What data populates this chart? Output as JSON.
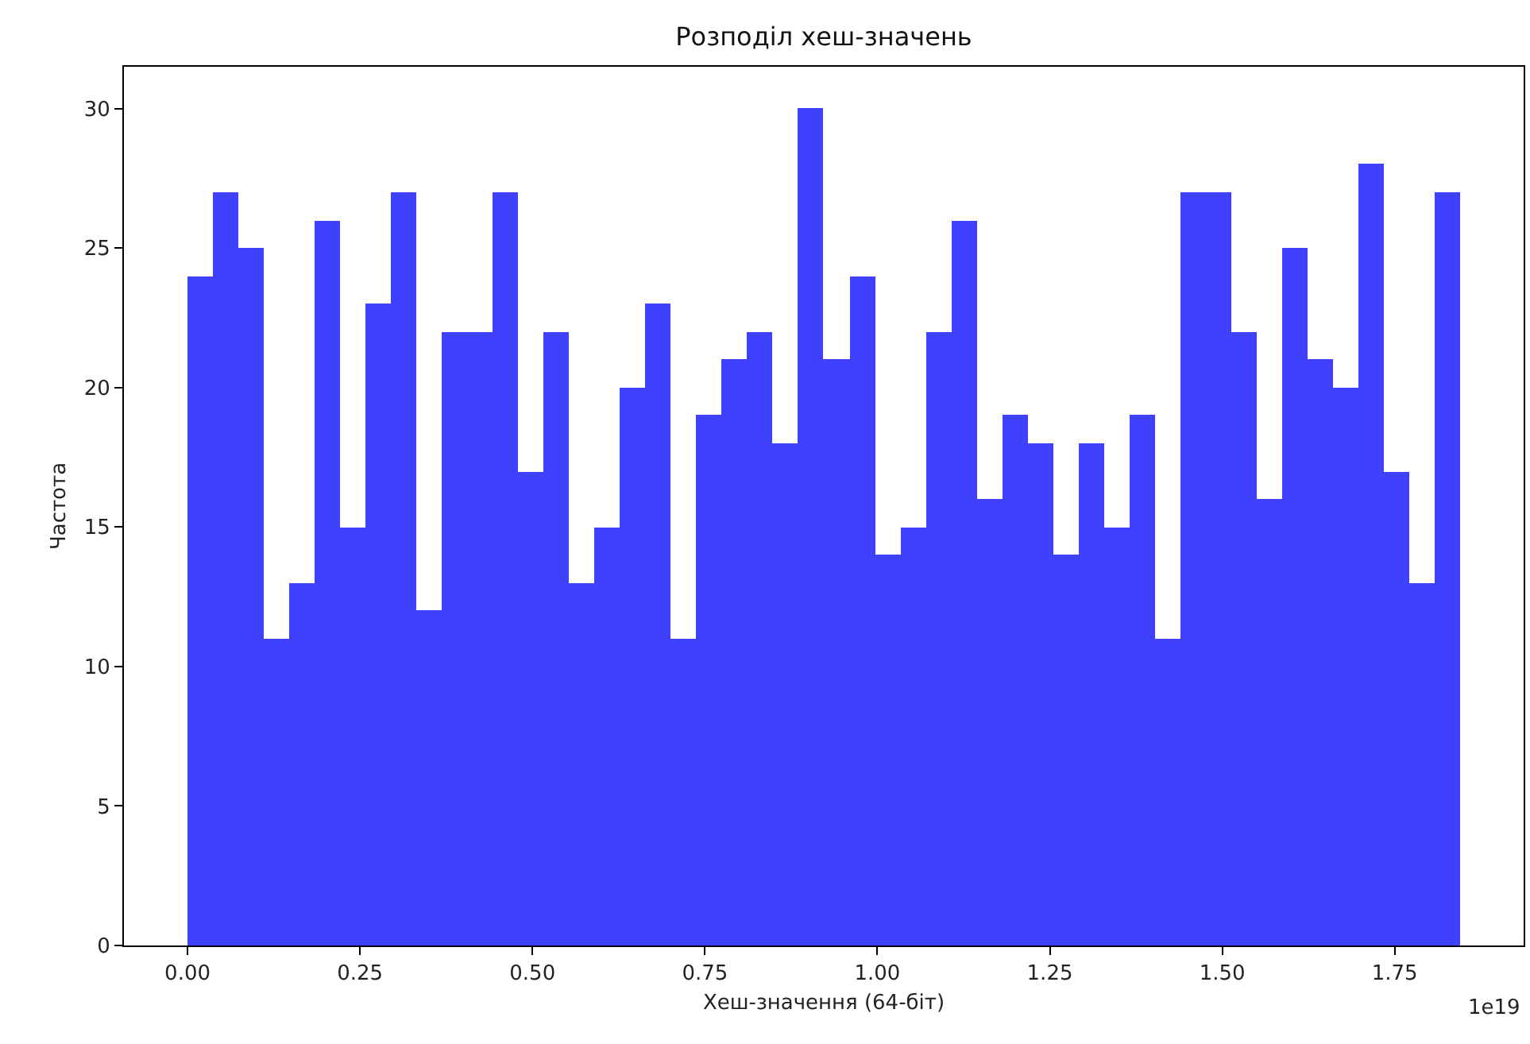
{
  "chart_data": {
    "type": "histogram",
    "title": "Розподіл хеш-значень",
    "xlabel": "Хеш-значення (64-біт)",
    "ylabel": "Частота",
    "bins": [
      0,
      0.0369,
      0.0738,
      0.1107,
      0.1476,
      0.1845,
      0.2214,
      0.2583,
      0.2951,
      0.332,
      0.3689,
      0.4058,
      0.4427,
      0.4796,
      0.5165,
      0.5534,
      0.5903,
      0.6272,
      0.6641,
      0.701,
      0.7379,
      0.7748,
      0.8117,
      0.8486,
      0.8854,
      0.9223,
      0.9592,
      0.9961,
      1.033,
      1.0699,
      1.1068,
      1.1437,
      1.1806,
      1.2175,
      1.2544,
      1.2913,
      1.3282,
      1.3651,
      1.402,
      1.4389,
      1.4757,
      1.5126,
      1.5495,
      1.5864,
      1.6233,
      1.6602,
      1.6971,
      1.734,
      1.7709,
      1.8078,
      1.8447
    ],
    "values": [
      24,
      27,
      25,
      11,
      13,
      26,
      15,
      23,
      27,
      12,
      22,
      22,
      27,
      17,
      22,
      13,
      15,
      20,
      23,
      11,
      19,
      21,
      22,
      18,
      30,
      21,
      24,
      14,
      15,
      22,
      26,
      16,
      19,
      18,
      14,
      18,
      15,
      19,
      11,
      27,
      27,
      22,
      16,
      25,
      21,
      20,
      28,
      17,
      13,
      27
    ],
    "color": "#4040ff",
    "xlim": [
      -0.0922,
      1.9369
    ],
    "ylim": [
      0,
      31.5
    ],
    "xticks": [
      {
        "value": 0,
        "label": "0.00"
      },
      {
        "value": 0.25,
        "label": "0.25"
      },
      {
        "value": 0.5,
        "label": "0.50"
      },
      {
        "value": 0.75,
        "label": "0.75"
      },
      {
        "value": 1,
        "label": "1.00"
      },
      {
        "value": 1.25,
        "label": "1.25"
      },
      {
        "value": 1.5,
        "label": "1.50"
      },
      {
        "value": 1.75,
        "label": "1.75"
      }
    ],
    "yticks": [
      0,
      5,
      10,
      15,
      20,
      25,
      30
    ],
    "annotations": [
      "1e19"
    ],
    "grid": false
  }
}
